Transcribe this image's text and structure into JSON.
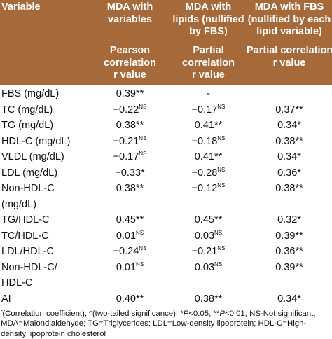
{
  "table": {
    "header": {
      "variable": "Variable",
      "groups": [
        [
          "MDA with",
          "variables"
        ],
        [
          "MDA with",
          "lipids (nullified",
          "by FBS)"
        ],
        [
          "MDA with FBS",
          "(nullified by each",
          "lipid variable)"
        ]
      ],
      "measures": [
        [
          "Pearson",
          "correlation",
          "r value"
        ],
        [
          "Partial",
          "correlation",
          "r value"
        ],
        [
          "Partial correlation",
          "r value"
        ]
      ]
    },
    "rows": [
      {
        "variable": [
          "FBS (mg/dL)"
        ],
        "cells": [
          {
            "text": "0.39**"
          },
          {
            "text": "-"
          },
          null
        ]
      },
      {
        "variable": [
          "TC (mg/dL)"
        ],
        "cells": [
          {
            "text": "−0.22",
            "sup": "NS"
          },
          {
            "text": "−0.17",
            "sup": "NS"
          },
          {
            "text": "0.37**"
          }
        ]
      },
      {
        "variable": [
          "TG (mg/dL)"
        ],
        "cells": [
          {
            "text": "0.38**"
          },
          {
            "text": "0.41**"
          },
          {
            "text": "0.34*"
          }
        ]
      },
      {
        "variable": [
          "HDL-C (mg/dL)"
        ],
        "cells": [
          {
            "text": "−0.21",
            "sup": "NS"
          },
          {
            "text": "−0.18",
            "sup": "NS"
          },
          {
            "text": "0.38**"
          }
        ]
      },
      {
        "variable": [
          "VLDL (mg/dL)"
        ],
        "cells": [
          {
            "text": "−0.17",
            "sup": "NS"
          },
          {
            "text": "0.41**"
          },
          {
            "text": "0.34*"
          }
        ]
      },
      {
        "variable": [
          "LDL (mg/dL)"
        ],
        "cells": [
          {
            "text": "−0.33*"
          },
          {
            "text": "−0.28",
            "sup": "NS"
          },
          {
            "text": "0.36*"
          }
        ]
      },
      {
        "variable": [
          "Non-HDL-C",
          "(mg/dL)"
        ],
        "cells": [
          {
            "text": "0.38**"
          },
          {
            "text": "−0.12",
            "sup": "NS"
          },
          {
            "text": "0.38**"
          }
        ]
      },
      {
        "variable": [
          "TG/HDL-C"
        ],
        "cells": [
          {
            "text": "0.45**"
          },
          {
            "text": "0.45**"
          },
          {
            "text": "0.32*"
          }
        ]
      },
      {
        "variable": [
          "TC/HDL-C"
        ],
        "cells": [
          {
            "text": "0.01",
            "sup": "NS"
          },
          {
            "text": "0.03",
            "sup": "NS"
          },
          {
            "text": "0.39**"
          }
        ]
      },
      {
        "variable": [
          "LDL/HDL-C"
        ],
        "cells": [
          {
            "text": "−0.24",
            "sup": "NS"
          },
          {
            "text": "−0.21",
            "sup": "NS"
          },
          {
            "text": "0.36**"
          }
        ]
      },
      {
        "variable": [
          "Non-HDL-C/",
          "HDL-C"
        ],
        "cells": [
          {
            "text": "0.01",
            "sup": "NS"
          },
          {
            "text": "0.03",
            "sup": "NS"
          },
          {
            "text": "0.39**"
          }
        ]
      },
      {
        "variable": [
          "AI"
        ],
        "cells": [
          {
            "text": "0.40**"
          },
          {
            "text": "0.38**"
          },
          {
            "text": "0.34*"
          }
        ]
      }
    ],
    "footnote": [
      {
        "text": "r",
        "sup": true
      },
      {
        "text": "(Correlation coefficient); "
      },
      {
        "text": "P",
        "sup": true
      },
      {
        "text": "(two-tailed significance); *"
      },
      {
        "text": "P",
        "italic": true
      },
      {
        "text": "<0.05, **"
      },
      {
        "text": "P",
        "italic": true
      },
      {
        "text": "<0.01; NS-Not significant; MDA=Malondialdehyde; TG=Triglycerides; LDL=Low-density lipoprotein; HDL-C=High-density lipoprotein cholesterol"
      }
    ]
  }
}
